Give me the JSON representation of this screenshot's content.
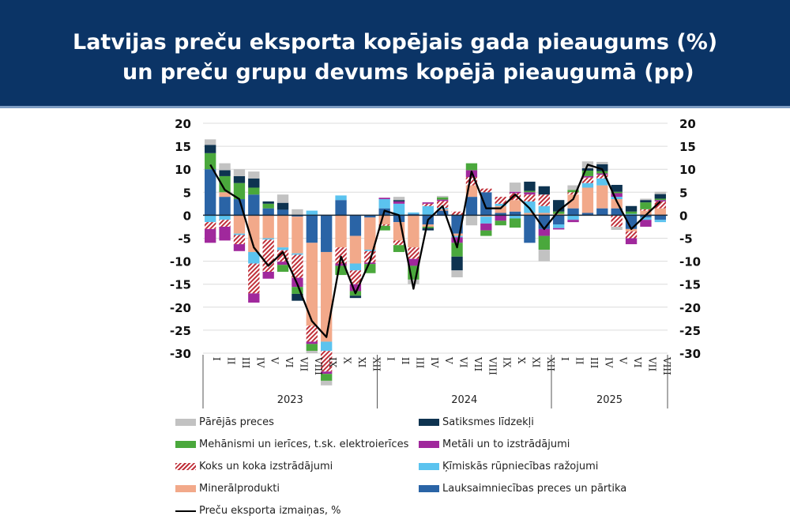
{
  "header": {
    "title_line1": "Latvijas preču eksporta kopējais gada pieaugums (%)",
    "title_line2": "un preču grupu devums kopējā pieaugumā (pp)"
  },
  "chart_data": {
    "type": "bar",
    "stacked": true,
    "title": "Latvijas preču eksporta kopējais gada pieaugums (%) un preču grupu devums kopējā pieaugumā (pp)",
    "ylim": [
      -30,
      20
    ],
    "yticks": [
      20,
      15,
      10,
      5,
      0,
      -5,
      -10,
      -15,
      -20,
      -25,
      -30
    ],
    "grid": true,
    "legend_position": "bottom",
    "groups": [
      {
        "label": "2023",
        "months": [
          "I",
          "II",
          "III",
          "IV",
          "V",
          "VI",
          "VII",
          "VIII",
          "IX",
          "X",
          "XI",
          "XII"
        ]
      },
      {
        "label": "2024",
        "months": [
          "I",
          "II",
          "III",
          "IV",
          "V",
          "VI",
          "VII",
          "VIII",
          "IX",
          "X",
          "XI",
          "XII"
        ]
      },
      {
        "label": "2025",
        "months": [
          "I",
          "II",
          "III",
          "IV",
          "V",
          "VI",
          "VII",
          "VIII"
        ]
      }
    ],
    "categories": [
      "I 2023",
      "II 2023",
      "III 2023",
      "IV 2023",
      "V 2023",
      "VI 2023",
      "VII 2023",
      "VIII 2023",
      "IX 2023",
      "X 2023",
      "XI 2023",
      "XII 2023",
      "I 2024",
      "II 2024",
      "III 2024",
      "IV 2024",
      "V 2024",
      "VI 2024",
      "VII 2024",
      "VIII 2024",
      "IX 2024",
      "X 2024",
      "XI 2024",
      "XII 2024",
      "I 2025",
      "II 2025",
      "III 2025",
      "IV 2025",
      "V 2025",
      "VI 2025",
      "VII 2025",
      "VIII 2025"
    ],
    "series": [
      {
        "name": "Lauksaimniecības preces un pārtika",
        "key": "agri",
        "color": "#2a64a6",
        "values": [
          10,
          4,
          3.5,
          4.5,
          1.5,
          1.2,
          -0.3,
          -6,
          -8,
          3.3,
          -4.5,
          -0.5,
          1.5,
          -1.5,
          0.3,
          -2,
          1,
          -4,
          4,
          5,
          0.5,
          0.8,
          -6,
          -3,
          -2,
          1.5,
          0.5,
          1.5,
          1.5,
          -3,
          -0.5,
          -1
        ]
      },
      {
        "name": "Minerālprodukti",
        "key": "mineral",
        "color": "#f2a98a",
        "values": [
          0,
          1,
          -4,
          -8,
          -5,
          -7,
          -8,
          -18,
          -19.5,
          -7,
          -6,
          -7,
          -2,
          -4,
          -7,
          -0.5,
          0.3,
          -0.5,
          2.5,
          -0.3,
          1.5,
          2.5,
          0.5,
          0.5,
          0.3,
          3,
          5.5,
          5,
          2,
          -0.5,
          1,
          1.5
        ]
      },
      {
        "name": "Ķīmiskās rūpniecības ražojumi",
        "key": "chem",
        "color": "#5bc3ef",
        "values": [
          -1.5,
          -1,
          -0.3,
          -2.5,
          -0.3,
          -0.6,
          -0.3,
          1,
          -2,
          1,
          -1.5,
          -0.3,
          2,
          2.5,
          0.3,
          2,
          0.3,
          -0.3,
          0,
          -1.5,
          0.5,
          -0.7,
          2.5,
          1.5,
          -0.8,
          -1,
          1,
          1.5,
          0.5,
          0.3,
          -0.5,
          -0.5
        ]
      },
      {
        "name": "Koks un koka izstrādājumi",
        "key": "wood",
        "color": "#c0303a",
        "pattern": "hatch",
        "values": [
          -1.5,
          -1.5,
          -2,
          -6.5,
          -7,
          -2.5,
          -5,
          -3.5,
          -4.5,
          -3.5,
          -3,
          -2.5,
          -0.3,
          -1,
          -2.5,
          0.5,
          1.5,
          0.8,
          1.8,
          0.8,
          1.5,
          1.5,
          1.5,
          2.5,
          0,
          0.5,
          1.2,
          0.8,
          -2.5,
          -1.5,
          0.3,
          1.5
        ]
      },
      {
        "name": "Metāli un to izstrādājumi",
        "key": "metal",
        "color": "#a0289c",
        "values": [
          -3,
          -3,
          -1.5,
          -2,
          -1.5,
          -0.7,
          -2,
          -0.5,
          -0.5,
          -0.5,
          -1.5,
          -0.3,
          0.3,
          0.5,
          -1.5,
          0.3,
          0.3,
          -1.2,
          1.5,
          -1.5,
          -1.2,
          0.3,
          0.5,
          -1.5,
          -0.3,
          -0.5,
          0.3,
          0.3,
          0.8,
          -1.3,
          -1.5,
          0.3
        ]
      },
      {
        "name": "Mehānismi un ierīces, t.sk. elektroierīces",
        "key": "mech",
        "color": "#4aa83c",
        "values": [
          3.5,
          3.5,
          3.5,
          1.5,
          1,
          -1.5,
          -1.5,
          -1.5,
          -1.5,
          -2,
          -1,
          -2,
          -1,
          -1.5,
          -3,
          -0.3,
          0.5,
          -3,
          1.5,
          -1.2,
          -1,
          -2,
          0.3,
          -3,
          0.5,
          0.5,
          1.2,
          0.5,
          0.3,
          0.5,
          1.5,
          0.3
        ]
      },
      {
        "name": "Satiksmes līdzekļi",
        "key": "transport",
        "color": "#0e3350",
        "values": [
          1.8,
          1.3,
          1.5,
          2,
          0.5,
          1.5,
          -1.5,
          0,
          0,
          0,
          -0.5,
          0,
          0,
          0.3,
          0,
          -0.5,
          0,
          -3,
          0,
          0,
          0,
          0,
          2,
          1.8,
          2.5,
          0,
          0.5,
          1.5,
          1.5,
          1.2,
          0.5,
          1
        ]
      },
      {
        "name": "Pārējās preces",
        "key": "other",
        "color": "#c2c2c2",
        "values": [
          1.2,
          1.5,
          1.5,
          1.5,
          0,
          1.8,
          1.3,
          -0.5,
          -1,
          0,
          0,
          0,
          0,
          0.7,
          -1,
          0,
          0.3,
          -1.5,
          -2.2,
          0,
          0,
          2,
          0,
          -2.5,
          0,
          1,
          1.5,
          0.5,
          -0.7,
          0,
          0.3,
          0.5
        ]
      }
    ],
    "line": {
      "name": "Preču eksporta izmaiņas, %",
      "color": "#000000",
      "values": [
        11,
        5.5,
        3.5,
        -7,
        -11,
        -8,
        -15,
        -23,
        -26.5,
        -9,
        -17,
        -10,
        1,
        0,
        -16,
        -1,
        2,
        -7,
        9.5,
        1.5,
        1.5,
        4.5,
        1.5,
        -3,
        1,
        3.5,
        11,
        10,
        3,
        -3,
        0,
        3
      ]
    }
  },
  "legend": {
    "left": [
      {
        "label": "Pārējās preces",
        "key": "other"
      },
      {
        "label": "Mehānismi un ierīces, t.sk. elektroierīces",
        "key": "mech"
      },
      {
        "label": "Koks un koka izstrādājumi",
        "key": "wood"
      },
      {
        "label": "Minerālprodukti",
        "key": "mineral"
      },
      {
        "label": "Preču eksporta izmaiņas, %",
        "key": "line"
      }
    ],
    "right": [
      {
        "label": "Satiksmes līdzekļi",
        "key": "transport"
      },
      {
        "label": "Metāli un to izstrādājumi",
        "key": "metal"
      },
      {
        "label": "Ķīmiskās rūpniecības ražojumi",
        "key": "chem"
      },
      {
        "label": "Lauksaimniecības preces un pārtika",
        "key": "agri"
      }
    ]
  }
}
